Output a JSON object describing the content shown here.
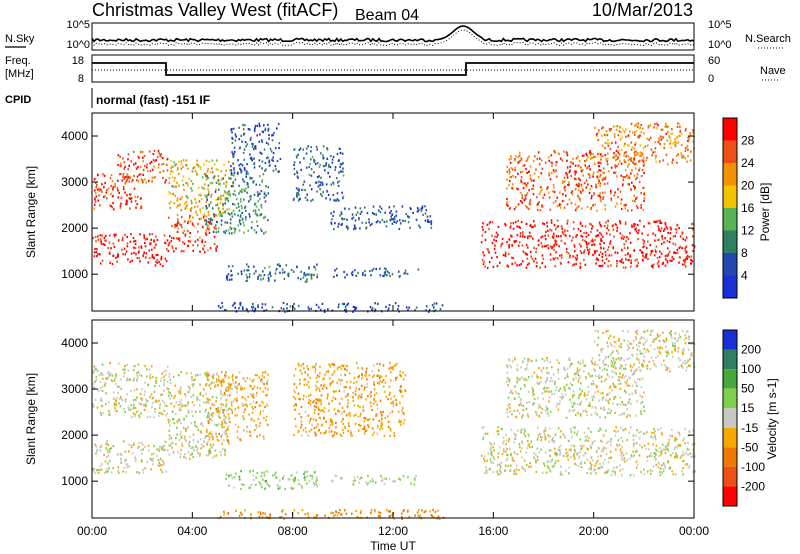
{
  "header": {
    "station": "Christmas Valley West (fitACF)",
    "beam": "Beam 04",
    "date": "10/Mar/2013"
  },
  "noise_panel": {
    "left_label": "N.Sky",
    "right_label": "N.Search",
    "ticks_left": [
      "10^5",
      "10^0"
    ],
    "ticks_right": [
      "10^5",
      "10^0"
    ]
  },
  "freq_panel": {
    "left_label_1": "Freq.",
    "left_label_2": "[MHz]",
    "right_label": "Nave",
    "ticks_left": [
      "18",
      "8"
    ],
    "ticks_right": [
      "60",
      "0"
    ]
  },
  "cpid": {
    "label": "CPID",
    "value": "normal (fast) -151 IF"
  },
  "axes": {
    "ylabel": "Slant Range [km]",
    "yticks": [
      "1000",
      "2000",
      "3000",
      "4000"
    ],
    "xlabel": "Time UT",
    "xticks": [
      "00:00",
      "04:00",
      "08:00",
      "12:00",
      "16:00",
      "20:00",
      "00:00"
    ]
  },
  "power_colorbar": {
    "title": "Power [dB]",
    "ticks": [
      "4",
      "8",
      "12",
      "16",
      "20",
      "24",
      "28"
    ],
    "colors": [
      "#1a2fd8",
      "#2446b0",
      "#2e7f62",
      "#5ab454",
      "#f5c200",
      "#f39200",
      "#ee4f14",
      "#ff0000"
    ]
  },
  "velocity_colorbar": {
    "title": "Velocity [m s-1]",
    "ticks": [
      "200",
      "100",
      "50",
      "15",
      "-15",
      "-50",
      "-100",
      "-200"
    ],
    "colors": [
      "#1a2fd8",
      "#2e7f62",
      "#48a83c",
      "#7fd04c",
      "#c8c8c0",
      "#f5a800",
      "#f07800",
      "#ee4f14",
      "#ff0000"
    ]
  },
  "chart_data": [
    {
      "type": "heatmap",
      "title": "Power [dB]",
      "xlabel": "Time UT",
      "ylabel": "Slant Range [km]",
      "xlim": [
        "00:00",
        "24:00"
      ],
      "ylim": [
        200,
        4500
      ],
      "colorbar_range": [
        0,
        30
      ],
      "regions": [
        {
          "t0": 0.0,
          "t1": 3.0,
          "r0": 1200,
          "r1": 1900,
          "value": 28
        },
        {
          "t0": 0.0,
          "t1": 2.0,
          "r0": 2400,
          "r1": 3200,
          "value": 26
        },
        {
          "t0": 1.0,
          "t1": 3.0,
          "r0": 3000,
          "r1": 3700,
          "value": 24
        },
        {
          "t0": 3.0,
          "t1": 5.0,
          "r0": 1500,
          "r1": 2300,
          "value": 26
        },
        {
          "t0": 3.0,
          "t1": 5.5,
          "r0": 2300,
          "r1": 3500,
          "value": 18
        },
        {
          "t0": 4.5,
          "t1": 7.0,
          "r0": 1900,
          "r1": 3200,
          "value": 10
        },
        {
          "t0": 5.5,
          "t1": 7.5,
          "r0": 3200,
          "r1": 4300,
          "value": 6
        },
        {
          "t0": 8.0,
          "t1": 10.0,
          "r0": 2600,
          "r1": 3800,
          "value": 7
        },
        {
          "t0": 9.5,
          "t1": 13.5,
          "r0": 2000,
          "r1": 2500,
          "value": 6
        },
        {
          "t0": 5.3,
          "t1": 9.0,
          "r0": 850,
          "r1": 1250,
          "value": 8
        },
        {
          "t0": 9.5,
          "t1": 13.0,
          "r0": 950,
          "r1": 1150,
          "value": 6
        },
        {
          "t0": 5.0,
          "t1": 14.0,
          "r0": 200,
          "r1": 400,
          "value": 5
        },
        {
          "t0": 15.5,
          "t1": 24.0,
          "r0": 1150,
          "r1": 2200,
          "value": 28
        },
        {
          "t0": 16.5,
          "t1": 22.0,
          "r0": 2400,
          "r1": 3700,
          "value": 24
        },
        {
          "t0": 20.0,
          "t1": 24.0,
          "r0": 3400,
          "r1": 4300,
          "value": 22
        }
      ]
    },
    {
      "type": "heatmap",
      "title": "Velocity [m s-1]",
      "xlabel": "Time UT",
      "ylabel": "Slant Range [km]",
      "xlim": [
        "00:00",
        "24:00"
      ],
      "ylim": [
        200,
        4500
      ],
      "colorbar_range": [
        -200,
        200
      ],
      "regions": [
        {
          "t0": 0.0,
          "t1": 3.0,
          "r0": 1200,
          "r1": 1900,
          "value": 0
        },
        {
          "t0": 0.0,
          "t1": 3.0,
          "r0": 2400,
          "r1": 3600,
          "value": 0
        },
        {
          "t0": 3.0,
          "t1": 5.5,
          "r0": 1500,
          "r1": 3400,
          "value": 0
        },
        {
          "t0": 4.5,
          "t1": 7.0,
          "r0": 1900,
          "r1": 3400,
          "value": -30
        },
        {
          "t0": 8.0,
          "t1": 12.5,
          "r0": 2000,
          "r1": 3600,
          "value": -40
        },
        {
          "t0": 5.3,
          "t1": 9.0,
          "r0": 850,
          "r1": 1250,
          "value": 30
        },
        {
          "t0": 9.5,
          "t1": 13.0,
          "r0": 950,
          "r1": 1150,
          "value": 20
        },
        {
          "t0": 5.0,
          "t1": 14.0,
          "r0": 200,
          "r1": 400,
          "value": -60
        },
        {
          "t0": 15.5,
          "t1": 24.0,
          "r0": 1150,
          "r1": 2200,
          "value": 0
        },
        {
          "t0": 16.5,
          "t1": 22.0,
          "r0": 2400,
          "r1": 3700,
          "value": 0
        },
        {
          "t0": 20.0,
          "t1": 24.0,
          "r0": 3400,
          "r1": 4300,
          "value": 0
        }
      ]
    }
  ]
}
